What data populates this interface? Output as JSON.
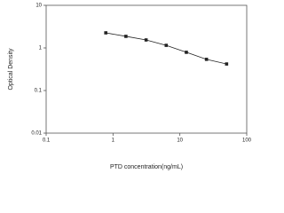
{
  "chart_data": {
    "type": "scatter",
    "x_label": "PTD concentration(ng/mL)",
    "y_label": "Optical Density",
    "xlog": true,
    "ylog": true,
    "xlim": [
      0.1,
      100
    ],
    "xticks": [
      0.1,
      1,
      10,
      100
    ],
    "ylim": [
      0.01,
      10
    ],
    "yticks": [
      0.01,
      0.1,
      1,
      10
    ],
    "series": [
      {
        "color": "#222222",
        "x": [
          0.78,
          1.56,
          3.125,
          6.25,
          12.5,
          25,
          50
        ],
        "values": [
          2.26,
          1.87,
          1.54,
          1.15,
          0.79,
          0.54,
          0.42
        ]
      }
    ]
  }
}
